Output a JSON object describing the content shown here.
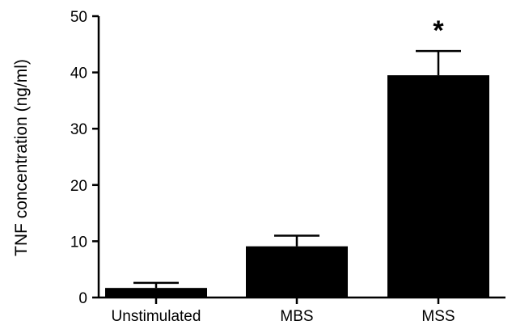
{
  "chart_data": {
    "type": "bar",
    "title": "",
    "xlabel": "",
    "ylabel": "TNF concentration (ng/ml)",
    "categories": [
      "Unstimulated",
      "MBS",
      "MSS"
    ],
    "values": [
      1.7,
      9.1,
      39.5
    ],
    "errors": [
      0.9,
      1.9,
      4.3
    ],
    "significance": [
      "",
      "",
      "*"
    ],
    "ylim": [
      0,
      50
    ],
    "yticks": [
      "0",
      "10",
      "20",
      "30",
      "40",
      "50"
    ],
    "grid": false,
    "legend": "none",
    "bar_color": "#000000"
  }
}
